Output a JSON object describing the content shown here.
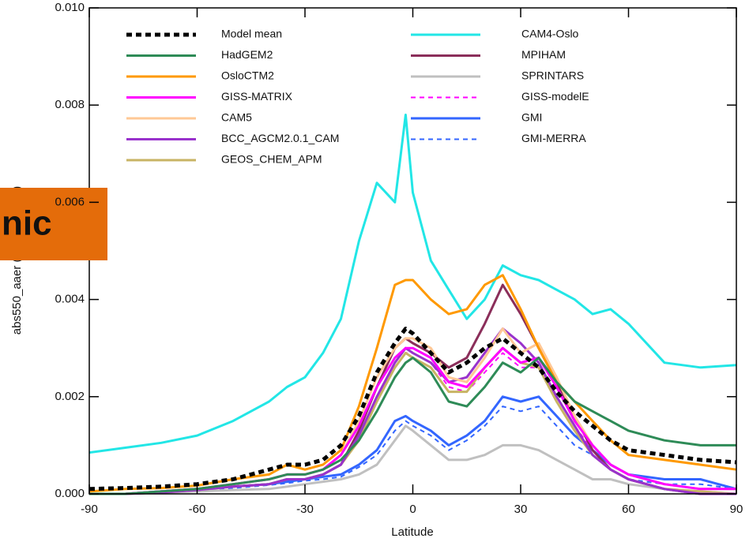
{
  "chart_data": {
    "type": "line",
    "ylabel": "abs550_aaer (annual mean)",
    "xlabel": "Latitude",
    "overlay_text": "nic",
    "xlim": [
      -90,
      90
    ],
    "ylim": [
      0,
      0.01
    ],
    "xticks": [
      -90,
      -60,
      -30,
      0,
      30,
      60,
      90
    ],
    "yticks": [
      {
        "value": 0,
        "label": "0.000"
      },
      {
        "value": 0.002,
        "label": "0.002"
      },
      {
        "value": 0.004,
        "label": "0.004"
      },
      {
        "value": 0.006,
        "label": "0.006"
      },
      {
        "value": 0.008,
        "label": "0.008"
      },
      {
        "value": 0.01,
        "label": "0.010"
      }
    ],
    "x": [
      -90,
      -80,
      -70,
      -60,
      -50,
      -40,
      -35,
      -30,
      -25,
      -20,
      -15,
      -10,
      -5,
      -2,
      0,
      5,
      10,
      15,
      20,
      25,
      30,
      35,
      40,
      45,
      50,
      55,
      60,
      70,
      80,
      90
    ],
    "series": [
      {
        "name": "Model mean",
        "color": "#000000",
        "style": "dashed",
        "width": 5,
        "values": [
          0.0001,
          0.00012,
          0.00015,
          0.0002,
          0.0003,
          0.0005,
          0.0006,
          0.0006,
          0.0007,
          0.001,
          0.0016,
          0.0025,
          0.0031,
          0.0034,
          0.0033,
          0.0029,
          0.0025,
          0.0027,
          0.003,
          0.0032,
          0.0029,
          0.0026,
          0.0021,
          0.0017,
          0.0014,
          0.0011,
          0.0009,
          0.0008,
          0.0007,
          0.00065
        ]
      },
      {
        "name": "HadGEM2",
        "color": "#2e8b57",
        "style": "solid",
        "width": 3,
        "values": [
          0,
          0,
          5e-05,
          0.0001,
          0.0002,
          0.0003,
          0.0004,
          0.0004,
          0.0005,
          0.0007,
          0.0011,
          0.0017,
          0.0024,
          0.0027,
          0.0028,
          0.0025,
          0.0019,
          0.0018,
          0.0022,
          0.0027,
          0.0025,
          0.0028,
          0.0023,
          0.0019,
          0.0017,
          0.0015,
          0.0013,
          0.0011,
          0.001,
          0.001
        ]
      },
      {
        "name": "OsloCTM2",
        "color": "#ff9900",
        "style": "solid",
        "width": 3,
        "values": [
          5e-05,
          0.0001,
          0.00012,
          0.00017,
          0.0003,
          0.0004,
          0.0006,
          0.0005,
          0.0006,
          0.0009,
          0.0018,
          0.003,
          0.0043,
          0.0044,
          0.0044,
          0.004,
          0.0037,
          0.0038,
          0.0043,
          0.0045,
          0.0038,
          0.003,
          0.0023,
          0.0019,
          0.0015,
          0.0011,
          0.0008,
          0.0007,
          0.0006,
          0.0005
        ]
      },
      {
        "name": "GISS-MATRIX",
        "color": "#ff00ff",
        "style": "solid",
        "width": 3,
        "values": [
          0,
          0,
          5e-05,
          0.0001,
          0.0002,
          0.0003,
          0.0004,
          0.0004,
          0.0005,
          0.0008,
          0.0014,
          0.0022,
          0.0028,
          0.003,
          0.003,
          0.0028,
          0.0023,
          0.0022,
          0.0026,
          0.003,
          0.0027,
          0.0028,
          0.0022,
          0.0015,
          0.001,
          0.0006,
          0.0004,
          0.0002,
          0.0001,
          0.0001
        ]
      },
      {
        "name": "CAM5",
        "color": "#ffc896",
        "style": "solid",
        "width": 3,
        "values": [
          0,
          0,
          5e-05,
          0.0001,
          0.0002,
          0.0003,
          0.0004,
          0.0004,
          0.0005,
          0.0008,
          0.0015,
          0.0024,
          0.003,
          0.0032,
          0.0032,
          0.003,
          0.0024,
          0.0023,
          0.0028,
          0.0034,
          0.0029,
          0.0031,
          0.0024,
          0.0016,
          0.001,
          0.0006,
          0.0004,
          0.0002,
          0.0001,
          0.0001
        ]
      },
      {
        "name": "BCC_AGCM2.0.1_CAM",
        "color": "#9932cc",
        "style": "solid",
        "width": 3,
        "values": [
          0,
          0,
          3e-05,
          8e-05,
          0.00015,
          0.0002,
          0.0003,
          0.0003,
          0.0004,
          0.0006,
          0.0012,
          0.002,
          0.0027,
          0.003,
          0.0029,
          0.0027,
          0.0023,
          0.0024,
          0.0029,
          0.0034,
          0.0031,
          0.0027,
          0.002,
          0.0014,
          0.0008,
          0.0005,
          0.0003,
          0.0001,
          0,
          0
        ]
      },
      {
        "name": "GEOS_CHEM_APM",
        "color": "#c8b464",
        "style": "solid",
        "width": 3,
        "values": [
          0,
          0,
          3e-05,
          8e-05,
          0.00015,
          0.0002,
          0.0003,
          0.0003,
          0.0004,
          0.0006,
          0.0011,
          0.0019,
          0.0026,
          0.0029,
          0.0028,
          0.0026,
          0.0021,
          0.0021,
          0.0026,
          0.003,
          0.0027,
          0.0026,
          0.0019,
          0.0013,
          0.0008,
          0.0005,
          0.0003,
          0.0001,
          5e-05,
          0
        ]
      },
      {
        "name": "CAM4-Oslo",
        "color": "#22e6e6",
        "style": "solid",
        "width": 3,
        "values": [
          0.00085,
          0.00095,
          0.00105,
          0.0012,
          0.0015,
          0.0019,
          0.0022,
          0.0024,
          0.0029,
          0.0036,
          0.0052,
          0.0064,
          0.006,
          0.0078,
          0.0062,
          0.0048,
          0.0042,
          0.0036,
          0.004,
          0.0047,
          0.0045,
          0.0044,
          0.0042,
          0.004,
          0.0037,
          0.0038,
          0.0035,
          0.0027,
          0.0026,
          0.00265
        ]
      },
      {
        "name": "MPIHAM",
        "color": "#8b2e5a",
        "style": "solid",
        "width": 3,
        "values": [
          0,
          0,
          5e-05,
          0.0001,
          0.00015,
          0.0002,
          0.0003,
          0.0003,
          0.0004,
          0.0006,
          0.0013,
          0.0022,
          0.003,
          0.0032,
          0.0031,
          0.0029,
          0.0026,
          0.0028,
          0.0035,
          0.0043,
          0.0037,
          0.003,
          0.0023,
          0.0016,
          0.0009,
          0.0005,
          0.0003,
          0.0001,
          0,
          0
        ]
      },
      {
        "name": "SPRINTARS",
        "color": "#c0c0c0",
        "style": "solid",
        "width": 3,
        "values": [
          0,
          0,
          3e-05,
          5e-05,
          8e-05,
          0.0001,
          0.00015,
          0.0002,
          0.00025,
          0.0003,
          0.0004,
          0.0006,
          0.0011,
          0.0014,
          0.0013,
          0.001,
          0.0007,
          0.0007,
          0.0008,
          0.001,
          0.001,
          0.0009,
          0.0007,
          0.0005,
          0.0003,
          0.0003,
          0.0002,
          0.0001,
          5e-05,
          0
        ]
      },
      {
        "name": "GISS-modelE",
        "color": "#ff00ff",
        "style": "dashed",
        "width": 2,
        "values": [
          0,
          0,
          5e-05,
          0.0001,
          0.00015,
          0.0002,
          0.0003,
          0.0003,
          0.0004,
          0.0006,
          0.0012,
          0.002,
          0.0026,
          0.0029,
          0.0029,
          0.0027,
          0.0022,
          0.0021,
          0.0025,
          0.0029,
          0.0026,
          0.0026,
          0.002,
          0.0014,
          0.0009,
          0.0005,
          0.0003,
          0.0001,
          5e-05,
          0
        ]
      },
      {
        "name": "GMI",
        "color": "#3366ff",
        "style": "solid",
        "width": 3,
        "values": [
          0,
          0,
          5e-05,
          0.0001,
          0.00015,
          0.0002,
          0.00025,
          0.0003,
          0.00035,
          0.0004,
          0.0006,
          0.0009,
          0.0015,
          0.0016,
          0.0015,
          0.0013,
          0.001,
          0.0012,
          0.0015,
          0.002,
          0.0019,
          0.002,
          0.0016,
          0.0012,
          0.0009,
          0.0006,
          0.0004,
          0.0003,
          0.0003,
          0.0001
        ]
      },
      {
        "name": "GMI-MERRA",
        "color": "#3366ff",
        "style": "dashed",
        "width": 2,
        "values": [
          0,
          0,
          4e-05,
          8e-05,
          0.00012,
          0.00018,
          0.00022,
          0.00027,
          0.0003,
          0.00035,
          0.00055,
          0.0008,
          0.0013,
          0.0015,
          0.0014,
          0.0012,
          0.0009,
          0.0011,
          0.0014,
          0.0018,
          0.0017,
          0.0018,
          0.0014,
          0.001,
          0.0008,
          0.0005,
          0.0003,
          0.0002,
          0.0002,
          0.0001
        ]
      }
    ]
  }
}
